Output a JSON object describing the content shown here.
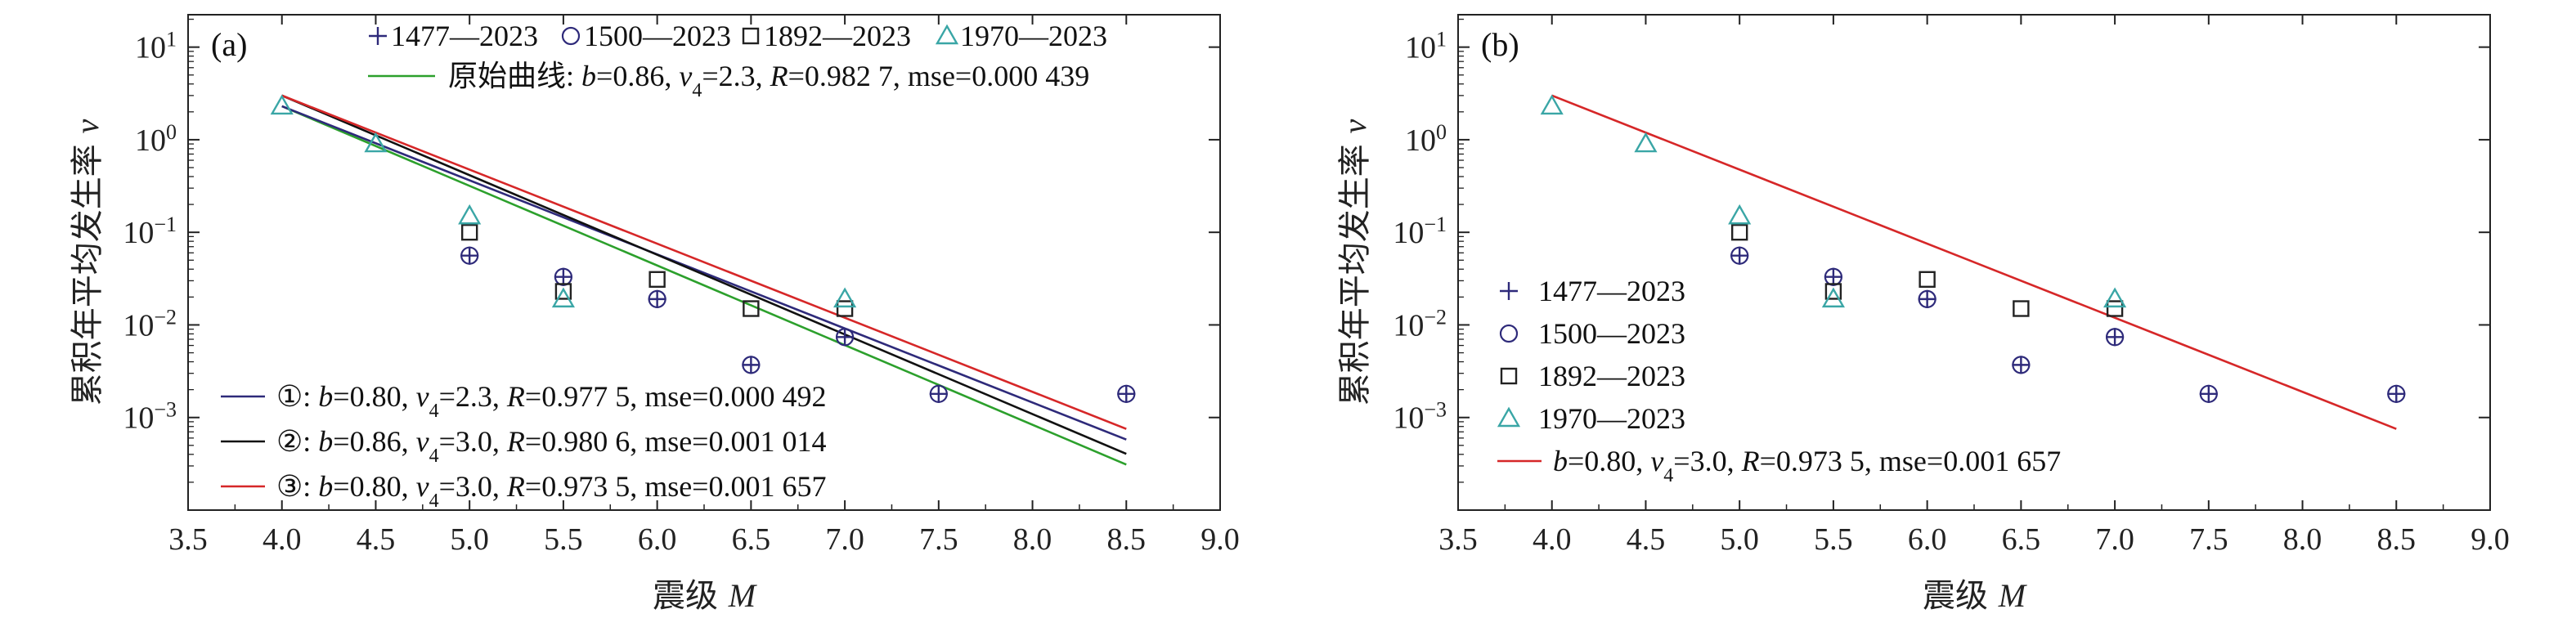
{
  "chart_data": [
    {
      "type": "scatter",
      "panel_label": "(a)",
      "xlabel": "震级 M",
      "ylabel": "累积年平均发生率 ν",
      "xlim": [
        3.5,
        9.0
      ],
      "ylim_log10": [
        -4,
        1.35
      ],
      "x_ticks": [
        "3.5",
        "4.0",
        "4.5",
        "5.0",
        "5.5",
        "6.0",
        "6.5",
        "7.0",
        "7.5",
        "8.0",
        "8.5",
        "9.0"
      ],
      "y_ticks": [
        {
          "exp": -3
        },
        {
          "exp": -2
        },
        {
          "exp": -1
        },
        {
          "exp": 0
        },
        {
          "exp": 1
        }
      ],
      "y_scale": "log",
      "legend_position": "top",
      "scatter_series": [
        {
          "name": "1477—2023",
          "marker": "plus",
          "color": "#2e2a7a",
          "points": [
            [
              5.0,
              0.056
            ],
            [
              5.5,
              0.033
            ],
            [
              6.0,
              0.019
            ],
            [
              6.5,
              0.0037
            ],
            [
              7.0,
              0.0074
            ],
            [
              7.5,
              0.0018
            ],
            [
              8.5,
              0.0018
            ]
          ]
        },
        {
          "name": "1500—2023",
          "marker": "circle",
          "color": "#2e2a7a",
          "points": [
            [
              5.0,
              0.056
            ],
            [
              5.5,
              0.033
            ],
            [
              6.0,
              0.019
            ],
            [
              6.5,
              0.0037
            ],
            [
              7.0,
              0.0074
            ],
            [
              7.5,
              0.0018
            ],
            [
              8.5,
              0.0018
            ]
          ]
        },
        {
          "name": "1892—2023",
          "marker": "square",
          "color": "#222222",
          "points": [
            [
              5.0,
              0.1
            ],
            [
              5.5,
              0.023
            ],
            [
              6.0,
              0.031
            ],
            [
              6.5,
              0.015
            ],
            [
              7.0,
              0.015
            ]
          ]
        },
        {
          "name": "1970—2023",
          "marker": "triangle",
          "color": "#3aa6a6",
          "points": [
            [
              4.0,
              2.3
            ],
            [
              4.5,
              0.9
            ],
            [
              5.0,
              0.15
            ],
            [
              5.5,
              0.019
            ],
            [
              7.0,
              0.019
            ]
          ]
        }
      ],
      "line_series": [
        {
          "name_parts": [
            [
              "原始曲线: ",
              ""
            ],
            [
              "b",
              "i"
            ],
            [
              "=0.86, ",
              ""
            ],
            [
              "v",
              "i"
            ],
            [
              "4",
              "sub"
            ],
            [
              "=2.3, ",
              ""
            ],
            [
              "R",
              "i"
            ],
            [
              "=0.982 7, mse=0.000 439",
              ""
            ]
          ],
          "color": "#2ca02c",
          "b": 0.86,
          "v4": 2.3,
          "x_range": [
            4.0,
            8.5
          ],
          "legend": "top"
        },
        {
          "name_parts": [
            [
              "①: ",
              ""
            ],
            [
              "b",
              "i"
            ],
            [
              "=0.80, ",
              ""
            ],
            [
              "v",
              "i"
            ],
            [
              "4",
              "sub"
            ],
            [
              "=2.3, ",
              ""
            ],
            [
              "R",
              "i"
            ],
            [
              "=0.977 5, mse=0.000 492",
              ""
            ]
          ],
          "color": "#2e2a7a",
          "b": 0.8,
          "v4": 2.3,
          "x_range": [
            4.0,
            8.5
          ],
          "legend": "bottom"
        },
        {
          "name_parts": [
            [
              "②: ",
              ""
            ],
            [
              "b",
              "i"
            ],
            [
              "=0.86, ",
              ""
            ],
            [
              "v",
              "i"
            ],
            [
              "4",
              "sub"
            ],
            [
              "=3.0, ",
              ""
            ],
            [
              "R",
              "i"
            ],
            [
              "=0.980 6, mse=0.001 014",
              ""
            ]
          ],
          "color": "#111111",
          "b": 0.86,
          "v4": 3.0,
          "x_range": [
            4.0,
            8.5
          ],
          "legend": "bottom"
        },
        {
          "name_parts": [
            [
              "③: ",
              ""
            ],
            [
              "b",
              "i"
            ],
            [
              "=0.80, ",
              ""
            ],
            [
              "v",
              "i"
            ],
            [
              "4",
              "sub"
            ],
            [
              "=3.0, ",
              ""
            ],
            [
              "R",
              "i"
            ],
            [
              "=0.973 5, mse=0.001 657",
              ""
            ]
          ],
          "color": "#d62728",
          "b": 0.8,
          "v4": 3.0,
          "x_range": [
            4.0,
            8.5
          ],
          "legend": "bottom"
        }
      ]
    },
    {
      "type": "scatter",
      "panel_label": "(b)",
      "xlabel": "震级 M",
      "ylabel": "累积年平均发生率 ν",
      "xlim": [
        3.5,
        9.0
      ],
      "ylim_log10": [
        -4,
        1.35
      ],
      "x_ticks": [
        "3.5",
        "4.0",
        "4.5",
        "5.0",
        "5.5",
        "6.0",
        "6.5",
        "7.0",
        "7.5",
        "8.0",
        "8.5",
        "9.0"
      ],
      "y_ticks": [
        {
          "exp": -3
        },
        {
          "exp": -2
        },
        {
          "exp": -1
        },
        {
          "exp": 0
        },
        {
          "exp": 1
        }
      ],
      "y_scale": "log",
      "legend_position": "bottom-left",
      "scatter_series": [
        {
          "name": "1477—2023",
          "marker": "plus",
          "color": "#2e2a7a",
          "points": [
            [
              5.0,
              0.056
            ],
            [
              5.5,
              0.033
            ],
            [
              6.0,
              0.019
            ],
            [
              6.5,
              0.0037
            ],
            [
              7.0,
              0.0074
            ],
            [
              7.5,
              0.0018
            ],
            [
              8.5,
              0.0018
            ]
          ]
        },
        {
          "name": "1500—2023",
          "marker": "circle",
          "color": "#2e2a7a",
          "points": [
            [
              5.0,
              0.056
            ],
            [
              5.5,
              0.033
            ],
            [
              6.0,
              0.019
            ],
            [
              6.5,
              0.0037
            ],
            [
              7.0,
              0.0074
            ],
            [
              7.5,
              0.0018
            ],
            [
              8.5,
              0.0018
            ]
          ]
        },
        {
          "name": "1892—2023",
          "marker": "square",
          "color": "#222222",
          "points": [
            [
              5.0,
              0.1
            ],
            [
              5.5,
              0.023
            ],
            [
              6.0,
              0.031
            ],
            [
              6.5,
              0.015
            ],
            [
              7.0,
              0.015
            ]
          ]
        },
        {
          "name": "1970—2023",
          "marker": "triangle",
          "color": "#3aa6a6",
          "points": [
            [
              4.0,
              2.3
            ],
            [
              4.5,
              0.9
            ],
            [
              5.0,
              0.15
            ],
            [
              5.5,
              0.019
            ],
            [
              7.0,
              0.019
            ]
          ]
        }
      ],
      "line_series": [
        {
          "name_parts": [
            [
              "b",
              "i"
            ],
            [
              "=0.80, ",
              ""
            ],
            [
              "v",
              "i"
            ],
            [
              "4",
              "sub"
            ],
            [
              "=3.0, ",
              ""
            ],
            [
              "R",
              "i"
            ],
            [
              "=0.973 5, mse=0.001 657",
              ""
            ]
          ],
          "color": "#d62728",
          "b": 0.8,
          "v4": 3.0,
          "x_range": [
            4.0,
            8.5
          ],
          "legend": "bottom"
        }
      ]
    }
  ]
}
